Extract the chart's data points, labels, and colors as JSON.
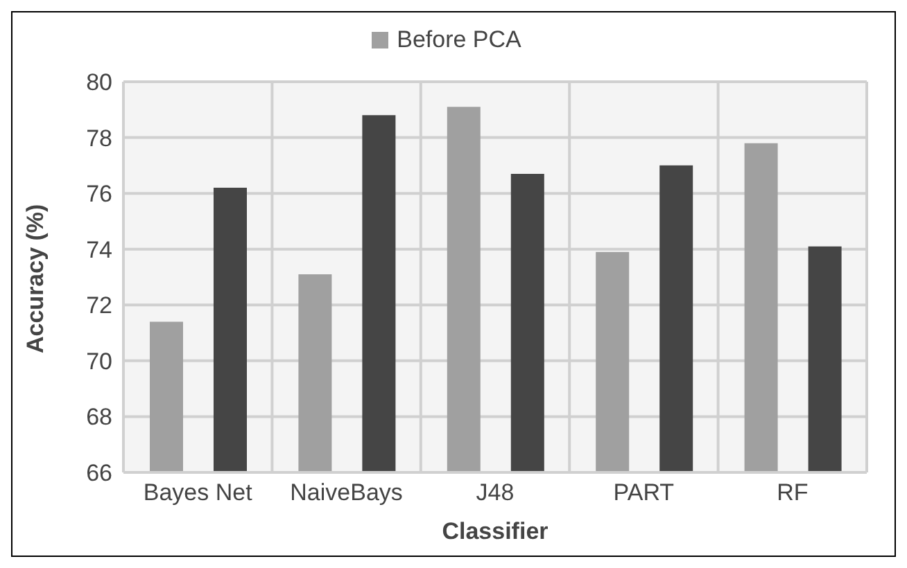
{
  "chart_data": {
    "type": "bar",
    "xlabel": "Classifier",
    "ylabel": "Accuracy (%)",
    "categories": [
      "Bayes Net",
      "NaiveBays",
      "J48",
      "PART",
      "RF"
    ],
    "series": [
      {
        "name": "Before PCA",
        "color": "#a0a0a0",
        "values": [
          71.4,
          73.1,
          79.1,
          73.9,
          77.8
        ]
      },
      {
        "color": "#454545",
        "values": [
          76.2,
          78.8,
          76.7,
          77.0,
          74.1
        ]
      }
    ],
    "ylim": [
      66,
      80
    ],
    "yticks": [
      66,
      68,
      70,
      72,
      74,
      76,
      78,
      80
    ],
    "grid": true,
    "legend": "top"
  }
}
